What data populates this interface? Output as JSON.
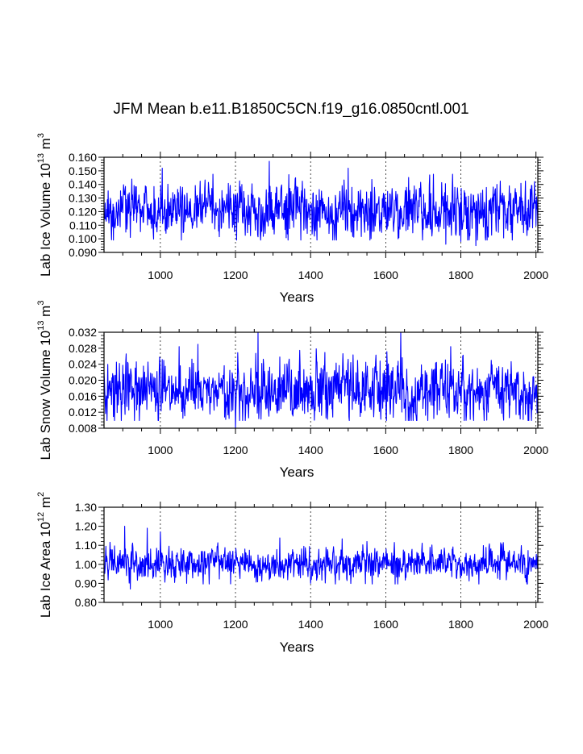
{
  "title": "JFM Mean b.e11.B1850C5CN.f19_g16.0850cntl.001",
  "colors": {
    "line": "#0000ff",
    "axis": "#000000",
    "grid": "#000000",
    "background": "#ffffff"
  },
  "chart_data": [
    {
      "type": "line",
      "ylabel": {
        "text": "Lab Ice Volume 10",
        "exp": "13",
        "unit": " m",
        "unit_exp": "3"
      },
      "xlabel": "Years",
      "xlim": [
        850,
        2005
      ],
      "ylim": [
        0.09,
        0.16
      ],
      "xticks": [
        "1000",
        "1200",
        "1400",
        "1600",
        "1800",
        "2000"
      ],
      "yticks": [
        "0.090",
        "0.100",
        "0.110",
        "0.120",
        "0.130",
        "0.140",
        "0.150",
        "0.160"
      ],
      "series": {
        "name": "Lab Ice Volume",
        "x_start": 850,
        "x_end": 2005,
        "mean": 0.121,
        "std": 0.0095,
        "min": 0.094,
        "max": 0.157,
        "seed": 17,
        "peaks": [
          [
            1290,
            0.157
          ],
          [
            1500,
            0.152
          ],
          [
            1005,
            0.152
          ],
          [
            920,
            0.101
          ],
          [
            1410,
            0.102
          ],
          [
            1760,
            0.096
          ],
          [
            1800,
            0.098
          ],
          [
            1840,
            0.095
          ]
        ]
      }
    },
    {
      "type": "line",
      "ylabel": {
        "text": "Lab Snow Volume 10",
        "exp": "13",
        "unit": " m",
        "unit_exp": "3"
      },
      "xlabel": "Years",
      "xlim": [
        850,
        2005
      ],
      "ylim": [
        0.008,
        0.032
      ],
      "xticks": [
        "1000",
        "1200",
        "1400",
        "1600",
        "1800",
        "2000"
      ],
      "yticks": [
        "0.008",
        "0.012",
        "0.016",
        "0.020",
        "0.024",
        "0.028",
        "0.032"
      ],
      "series": {
        "name": "Lab Snow Volume",
        "x_start": 850,
        "x_end": 2005,
        "mean": 0.0175,
        "std": 0.0037,
        "min": 0.008,
        "max": 0.032,
        "seed": 41,
        "peaks": [
          [
            1260,
            0.032
          ],
          [
            1640,
            0.032
          ],
          [
            1100,
            0.029
          ],
          [
            1200,
            0.008
          ],
          [
            1410,
            0.01
          ]
        ]
      }
    },
    {
      "type": "line",
      "ylabel": {
        "text": "Lab Ice Area 10",
        "exp": "12",
        "unit": " m",
        "unit_exp": "2"
      },
      "xlabel": "Years",
      "xlim": [
        850,
        2005
      ],
      "ylim": [
        0.8,
        1.3
      ],
      "xticks": [
        "1000",
        "1200",
        "1400",
        "1600",
        "1800",
        "2000"
      ],
      "yticks": [
        "0.80",
        "0.90",
        "1.00",
        "1.10",
        "1.20",
        "1.30"
      ],
      "series": {
        "name": "Lab Ice Area",
        "x_start": 850,
        "x_end": 2005,
        "mean": 1.005,
        "std": 0.042,
        "min": 0.87,
        "max": 1.2,
        "seed": 73,
        "peaks": [
          [
            905,
            1.2
          ],
          [
            965,
            1.19
          ],
          [
            1000,
            1.17
          ],
          [
            920,
            0.87
          ],
          [
            1070,
            0.9
          ]
        ]
      }
    }
  ]
}
